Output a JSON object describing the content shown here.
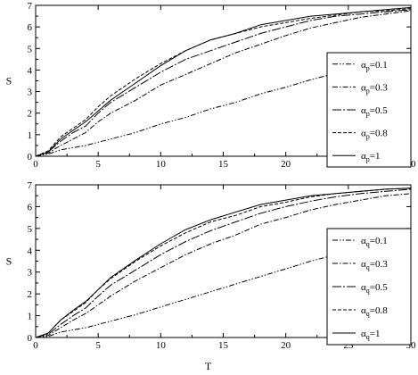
{
  "chart_data": [
    {
      "type": "line",
      "xlabel": "",
      "ylabel": "S",
      "xlim": [
        0,
        30
      ],
      "ylim": [
        0,
        7
      ],
      "xticks": [
        "0",
        "5",
        "10",
        "15",
        "20",
        "25",
        "30"
      ],
      "yticks": [
        "0",
        "1",
        "2",
        "3",
        "4",
        "5",
        "6",
        "7"
      ],
      "grid": false,
      "legend_position": "right",
      "legend": [
        {
          "symbol": "α",
          "sub": "p",
          "value": "=0.1"
        },
        {
          "symbol": "α",
          "sub": "p",
          "value": "=0.3"
        },
        {
          "symbol": "α",
          "sub": "p",
          "value": "=0.5"
        },
        {
          "symbol": "α",
          "sub": "p",
          "value": "=0.8"
        },
        {
          "symbol": "α",
          "sub": "p",
          "value": "=1"
        }
      ],
      "series": [
        {
          "style": "dash-dot-dot",
          "points": [
            [
              0,
              0
            ],
            [
              1,
              0.1
            ],
            [
              2,
              0.3
            ],
            [
              4,
              0.5
            ],
            [
              6,
              0.8
            ],
            [
              8,
              1.1
            ],
            [
              10,
              1.5
            ],
            [
              12,
              1.8
            ],
            [
              14,
              2.2
            ],
            [
              16,
              2.5
            ],
            [
              18,
              2.9
            ],
            [
              20,
              3.2
            ],
            [
              22,
              3.55
            ],
            [
              24,
              3.85
            ],
            [
              26,
              4.15
            ],
            [
              28,
              4.4
            ],
            [
              30,
              4.65
            ]
          ]
        },
        {
          "style": "dash-dot",
          "points": [
            [
              0,
              0
            ],
            [
              1,
              0.15
            ],
            [
              2,
              0.5
            ],
            [
              3,
              0.8
            ],
            [
              4,
              1.1
            ],
            [
              5,
              1.6
            ],
            [
              6,
              2.0
            ],
            [
              8,
              2.6
            ],
            [
              10,
              3.3
            ],
            [
              12,
              3.8
            ],
            [
              14,
              4.3
            ],
            [
              16,
              4.8
            ],
            [
              18,
              5.2
            ],
            [
              20,
              5.6
            ],
            [
              22,
              5.95
            ],
            [
              24,
              6.2
            ],
            [
              26,
              6.45
            ],
            [
              28,
              6.6
            ],
            [
              30,
              6.75
            ]
          ]
        },
        {
          "style": "long-dash-dot",
          "points": [
            [
              0,
              0
            ],
            [
              1,
              0.2
            ],
            [
              2,
              0.7
            ],
            [
              3,
              1.1
            ],
            [
              4,
              1.4
            ],
            [
              5,
              2.0
            ],
            [
              6,
              2.5
            ],
            [
              8,
              3.2
            ],
            [
              10,
              3.9
            ],
            [
              12,
              4.5
            ],
            [
              14,
              4.9
            ],
            [
              16,
              5.3
            ],
            [
              18,
              5.7
            ],
            [
              20,
              6.0
            ],
            [
              22,
              6.3
            ],
            [
              24,
              6.5
            ],
            [
              26,
              6.6
            ],
            [
              28,
              6.7
            ],
            [
              30,
              6.8
            ]
          ]
        },
        {
          "style": "dashed",
          "points": [
            [
              0,
              0
            ],
            [
              1,
              0.25
            ],
            [
              2,
              0.9
            ],
            [
              3,
              1.3
            ],
            [
              4,
              1.7
            ],
            [
              5,
              2.3
            ],
            [
              6,
              2.8
            ],
            [
              8,
              3.6
            ],
            [
              10,
              4.3
            ],
            [
              12,
              4.9
            ],
            [
              14,
              5.4
            ],
            [
              16,
              5.7
            ],
            [
              18,
              6.0
            ],
            [
              20,
              6.2
            ],
            [
              22,
              6.4
            ],
            [
              24,
              6.55
            ],
            [
              26,
              6.7
            ],
            [
              28,
              6.75
            ],
            [
              30,
              6.85
            ]
          ]
        },
        {
          "style": "solid",
          "points": [
            [
              0,
              0
            ],
            [
              1,
              0.2
            ],
            [
              2,
              0.8
            ],
            [
              3,
              1.2
            ],
            [
              4,
              1.6
            ],
            [
              5,
              2.1
            ],
            [
              6,
              2.6
            ],
            [
              8,
              3.4
            ],
            [
              10,
              4.2
            ],
            [
              12,
              4.9
            ],
            [
              14,
              5.4
            ],
            [
              16,
              5.7
            ],
            [
              18,
              6.1
            ],
            [
              20,
              6.3
            ],
            [
              22,
              6.5
            ],
            [
              24,
              6.6
            ],
            [
              26,
              6.7
            ],
            [
              28,
              6.8
            ],
            [
              30,
              6.9
            ]
          ]
        }
      ]
    },
    {
      "type": "line",
      "xlabel": "T",
      "ylabel": "S",
      "xlim": [
        0,
        30
      ],
      "ylim": [
        0,
        7
      ],
      "xticks": [
        "0",
        "5",
        "10",
        "15",
        "20",
        "25",
        "30"
      ],
      "yticks": [
        "0",
        "1",
        "2",
        "3",
        "4",
        "5",
        "6",
        "7"
      ],
      "grid": false,
      "legend_position": "right",
      "legend": [
        {
          "symbol": "α",
          "sub": "q",
          "value": "=0.1"
        },
        {
          "symbol": "α",
          "sub": "q",
          "value": "=0.3"
        },
        {
          "symbol": "α",
          "sub": "q",
          "value": "=0.5"
        },
        {
          "symbol": "α",
          "sub": "q",
          "value": "=0.8"
        },
        {
          "symbol": "α",
          "sub": "q",
          "value": "=1"
        }
      ],
      "series": [
        {
          "style": "dash-dot-dot",
          "points": [
            [
              0,
              0
            ],
            [
              1,
              0.05
            ],
            [
              2,
              0.25
            ],
            [
              4,
              0.45
            ],
            [
              6,
              0.75
            ],
            [
              8,
              1.05
            ],
            [
              10,
              1.4
            ],
            [
              12,
              1.75
            ],
            [
              14,
              2.1
            ],
            [
              16,
              2.45
            ],
            [
              18,
              2.8
            ],
            [
              20,
              3.15
            ],
            [
              22,
              3.5
            ],
            [
              24,
              3.8
            ],
            [
              26,
              4.1
            ],
            [
              28,
              4.4
            ],
            [
              30,
              4.65
            ]
          ]
        },
        {
          "style": "dash-dot",
          "points": [
            [
              0,
              0
            ],
            [
              1,
              0.1
            ],
            [
              2,
              0.45
            ],
            [
              3,
              0.8
            ],
            [
              4,
              1.1
            ],
            [
              5,
              1.5
            ],
            [
              6,
              1.9
            ],
            [
              8,
              2.6
            ],
            [
              10,
              3.2
            ],
            [
              12,
              3.8
            ],
            [
              14,
              4.3
            ],
            [
              16,
              4.7
            ],
            [
              18,
              5.2
            ],
            [
              20,
              5.5
            ],
            [
              22,
              5.85
            ],
            [
              24,
              6.1
            ],
            [
              26,
              6.3
            ],
            [
              28,
              6.5
            ],
            [
              30,
              6.6
            ]
          ]
        },
        {
          "style": "long-dash-dot",
          "points": [
            [
              0,
              0
            ],
            [
              1,
              0.15
            ],
            [
              2,
              0.6
            ],
            [
              3,
              1.0
            ],
            [
              4,
              1.35
            ],
            [
              5,
              1.9
            ],
            [
              6,
              2.4
            ],
            [
              8,
              3.1
            ],
            [
              10,
              3.8
            ],
            [
              12,
              4.4
            ],
            [
              14,
              4.9
            ],
            [
              16,
              5.3
            ],
            [
              18,
              5.7
            ],
            [
              20,
              6.0
            ],
            [
              22,
              6.25
            ],
            [
              24,
              6.45
            ],
            [
              26,
              6.6
            ],
            [
              28,
              6.7
            ],
            [
              30,
              6.8
            ]
          ]
        },
        {
          "style": "dashed",
          "points": [
            [
              0,
              0
            ],
            [
              1,
              0.2
            ],
            [
              2,
              0.8
            ],
            [
              3,
              1.2
            ],
            [
              4,
              1.6
            ],
            [
              5,
              2.2
            ],
            [
              6,
              2.7
            ],
            [
              8,
              3.5
            ],
            [
              10,
              4.2
            ],
            [
              12,
              4.8
            ],
            [
              14,
              5.3
            ],
            [
              16,
              5.6
            ],
            [
              18,
              6.0
            ],
            [
              20,
              6.2
            ],
            [
              22,
              6.45
            ],
            [
              24,
              6.6
            ],
            [
              26,
              6.7
            ],
            [
              28,
              6.8
            ],
            [
              30,
              6.85
            ]
          ]
        },
        {
          "style": "solid",
          "points": [
            [
              0,
              0
            ],
            [
              1,
              0.2
            ],
            [
              2,
              0.8
            ],
            [
              3,
              1.25
            ],
            [
              4,
              1.65
            ],
            [
              5,
              2.2
            ],
            [
              6,
              2.75
            ],
            [
              8,
              3.55
            ],
            [
              10,
              4.3
            ],
            [
              12,
              4.95
            ],
            [
              14,
              5.4
            ],
            [
              16,
              5.75
            ],
            [
              18,
              6.1
            ],
            [
              20,
              6.3
            ],
            [
              22,
              6.5
            ],
            [
              24,
              6.6
            ],
            [
              26,
              6.7
            ],
            [
              28,
              6.8
            ],
            [
              30,
              6.85
            ]
          ]
        }
      ]
    }
  ]
}
